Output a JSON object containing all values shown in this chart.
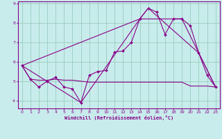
{
  "xlabel": "Windchill (Refroidissement éolien,°C)",
  "xlim": [
    -0.5,
    23.5
  ],
  "ylim": [
    3.6,
    9.1
  ],
  "yticks": [
    4,
    5,
    6,
    7,
    8,
    9
  ],
  "xticks": [
    0,
    1,
    2,
    3,
    4,
    5,
    6,
    7,
    8,
    9,
    10,
    11,
    12,
    13,
    14,
    15,
    16,
    17,
    18,
    19,
    20,
    21,
    22,
    23
  ],
  "bg_color": "#c8ecec",
  "line_color": "#880088",
  "grid_color": "#99ccbb",
  "series1_x": [
    0,
    1,
    2,
    3,
    4,
    5,
    6,
    7,
    8,
    9,
    10,
    11,
    12,
    13,
    14,
    15,
    16,
    17,
    18,
    19,
    20,
    21,
    22,
    23
  ],
  "series1_y": [
    5.8,
    5.1,
    4.7,
    5.0,
    5.2,
    4.7,
    4.6,
    3.9,
    5.3,
    5.5,
    5.55,
    6.5,
    6.55,
    7.0,
    8.2,
    8.75,
    8.55,
    7.4,
    8.2,
    8.2,
    7.85,
    6.45,
    5.3,
    4.7
  ],
  "series2_x": [
    0,
    1,
    2,
    3,
    4,
    5,
    6,
    7,
    8,
    9,
    10,
    11,
    12,
    13,
    14,
    15,
    16,
    17,
    18,
    19,
    20,
    21,
    22,
    23
  ],
  "series2_y": [
    5.8,
    5.1,
    5.05,
    5.05,
    5.1,
    5.05,
    5.05,
    5.0,
    4.95,
    4.95,
    4.95,
    4.95,
    4.95,
    4.95,
    4.95,
    4.95,
    4.95,
    4.95,
    4.95,
    4.95,
    4.75,
    4.75,
    4.75,
    4.7
  ],
  "series3_x": [
    0,
    7,
    14,
    15,
    21,
    23
  ],
  "series3_y": [
    5.8,
    3.9,
    8.2,
    8.75,
    6.45,
    4.7
  ],
  "series4_x": [
    0,
    14,
    19,
    23
  ],
  "series4_y": [
    5.8,
    8.2,
    8.2,
    4.7
  ]
}
